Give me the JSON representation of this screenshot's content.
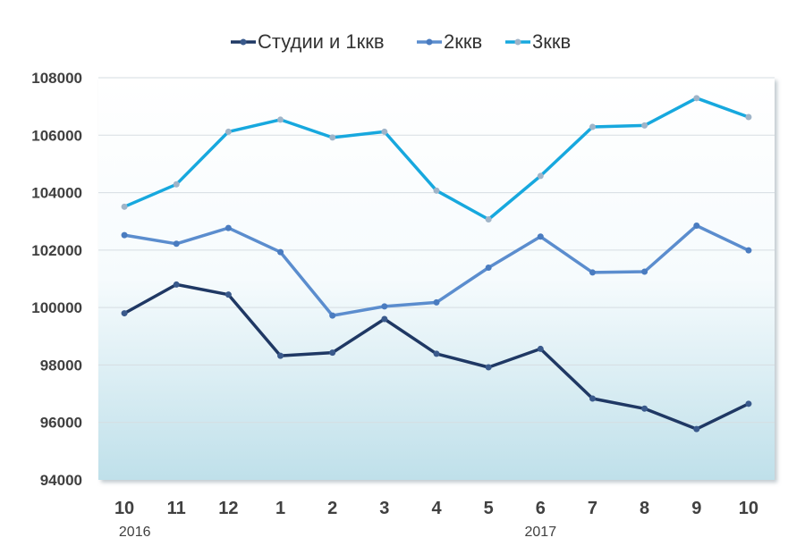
{
  "chart_data": {
    "type": "line",
    "categories": [
      "10",
      "11",
      "12",
      "1",
      "2",
      "3",
      "4",
      "5",
      "6",
      "7",
      "8",
      "9",
      "10"
    ],
    "year_labels": [
      "2016",
      "2017"
    ],
    "ylim": [
      94000,
      108000
    ],
    "yticks": [
      94000,
      96000,
      98000,
      100000,
      102000,
      104000,
      106000,
      108000
    ],
    "grid": true,
    "legend_position": "top-center",
    "series": [
      {
        "name": "Студии и 1ккв",
        "color": "#1f3864",
        "marker_color": "#3a5a8c",
        "values": [
          99800,
          100800,
          100450,
          98320,
          98430,
          99600,
          98390,
          97920,
          98560,
          96830,
          96480,
          95770,
          96650
        ]
      },
      {
        "name": "2ккв",
        "color": "#5b8dce",
        "marker_color": "#4a7cc0",
        "values": [
          102520,
          102220,
          102770,
          101930,
          99720,
          100040,
          100180,
          101390,
          102470,
          101220,
          101250,
          102850,
          101990
        ]
      },
      {
        "name": "3ккв",
        "color": "#17a8de",
        "marker_color": "#9fb4c8",
        "values": [
          103510,
          104290,
          106120,
          106540,
          105920,
          106120,
          104070,
          103070,
          104580,
          106290,
          106340,
          107290,
          106630
        ]
      }
    ]
  }
}
